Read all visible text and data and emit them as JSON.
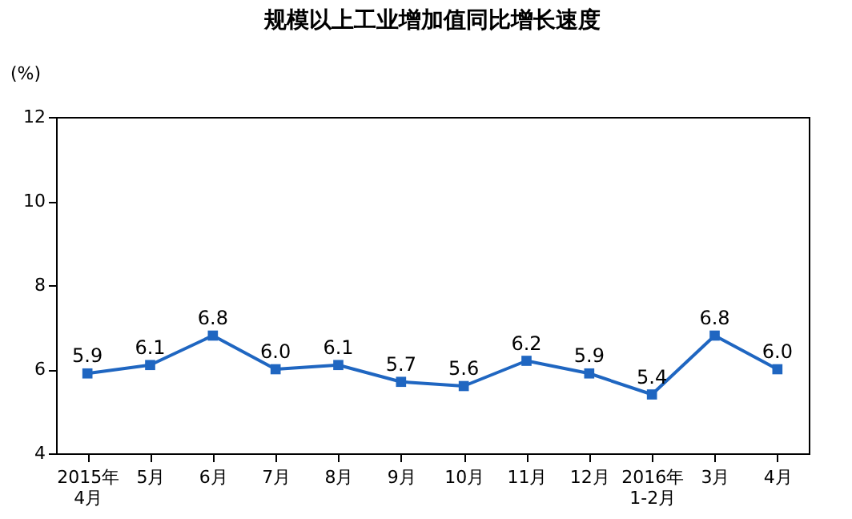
{
  "chart_data": {
    "type": "line",
    "title": "规模以上工业增加值同比增长速度",
    "ylabel": "(%)",
    "categories": [
      "2015年\n4月",
      "5月",
      "6月",
      "7月",
      "8月",
      "9月",
      "10月",
      "11月",
      "12月",
      "2016年\n1-2月",
      "3月",
      "4月"
    ],
    "series": [
      {
        "color": "#1f66c1",
        "values": [
          5.9,
          6.1,
          6.8,
          6.0,
          6.1,
          5.7,
          5.6,
          6.2,
          5.9,
          5.4,
          6.8,
          6.0
        ],
        "value_labels": [
          "5.9",
          "6.1",
          "6.8",
          "6.0",
          "6.1",
          "5.7",
          "5.6",
          "6.2",
          "5.9",
          "5.4",
          "6.8",
          "6.0"
        ]
      }
    ],
    "ylim": [
      4,
      12
    ],
    "yticks": [
      4,
      6,
      8,
      10,
      12
    ],
    "grid": false,
    "legend": false,
    "marker": "square",
    "line_style": "solid"
  }
}
